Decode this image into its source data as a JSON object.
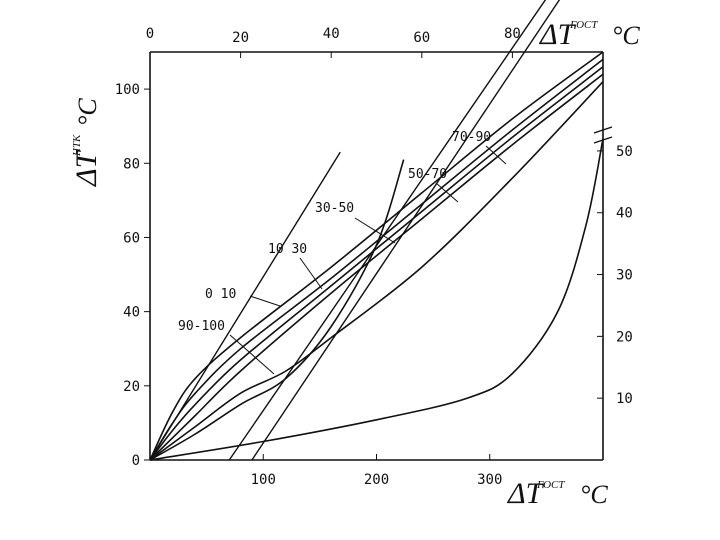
{
  "chart_data": {
    "type": "line",
    "title": "",
    "axes": {
      "bottom": {
        "symbol": "ΔT",
        "superscript": "ГОСТ",
        "suffix": "°C",
        "ticks": [
          "100",
          "200",
          "300"
        ],
        "range": [
          0,
          400
        ]
      },
      "top": {
        "symbol": "ΔT",
        "superscript": "ГОСТ",
        "suffix": "°C",
        "ticks": [
          "0",
          "20",
          "40",
          "60",
          "80"
        ],
        "range": [
          0,
          100
        ]
      },
      "left": {
        "symbol": "ΔT",
        "superscript": "НТК",
        "suffix": "°C",
        "ticks": [
          "0",
          "20",
          "40",
          "60",
          "80",
          "100"
        ],
        "range": [
          0,
          110
        ]
      },
      "right": {
        "ticks": [
          "10",
          "20",
          "30",
          "40",
          "50"
        ],
        "range": [
          0,
          66
        ]
      }
    },
    "grid": false,
    "curve_labels": [
      "90-100",
      "0 10",
      "10 30",
      "30-50",
      "50-70",
      "70-90"
    ],
    "series": [
      {
        "name": "0 10",
        "axes": "top-left",
        "points": [
          [
            0,
            0
          ],
          [
            5,
            13
          ],
          [
            10,
            22
          ],
          [
            20,
            33
          ],
          [
            40,
            52
          ],
          [
            60,
            72
          ],
          [
            80,
            92
          ],
          [
            100,
            110
          ]
        ]
      },
      {
        "name": "10 30",
        "axes": "top-left",
        "points": [
          [
            0,
            0
          ],
          [
            5,
            10
          ],
          [
            10,
            18
          ],
          [
            20,
            30
          ],
          [
            40,
            49
          ],
          [
            60,
            69
          ],
          [
            80,
            89
          ],
          [
            100,
            108
          ]
        ]
      },
      {
        "name": "30-50",
        "axes": "top-left",
        "points": [
          [
            0,
            0
          ],
          [
            5,
            8
          ],
          [
            10,
            15
          ],
          [
            20,
            27
          ],
          [
            40,
            47
          ],
          [
            60,
            67
          ],
          [
            80,
            87
          ],
          [
            100,
            106
          ]
        ]
      },
      {
        "name": "50-70",
        "axes": "top-left",
        "points": [
          [
            0,
            0
          ],
          [
            5,
            6
          ],
          [
            10,
            12
          ],
          [
            20,
            24
          ],
          [
            40,
            45
          ],
          [
            60,
            65
          ],
          [
            80,
            85
          ],
          [
            100,
            104
          ]
        ]
      },
      {
        "name": "70-90",
        "axes": "top-left",
        "points": [
          [
            0,
            0
          ],
          [
            10,
            9
          ],
          [
            20,
            18
          ],
          [
            30,
            24
          ],
          [
            40,
            33
          ],
          [
            60,
            52
          ],
          [
            80,
            76
          ],
          [
            100,
            102
          ]
        ]
      },
      {
        "name": "90-100",
        "axes": "top-left",
        "points": [
          [
            0,
            0
          ],
          [
            10,
            7
          ],
          [
            20,
            15
          ],
          [
            30,
            22
          ],
          [
            40,
            36
          ],
          [
            50,
            58
          ],
          [
            56,
            81
          ]
        ]
      },
      {
        "name": "",
        "axes": "bottom-right",
        "points": [
          [
            0,
            0
          ],
          [
            100,
            3
          ],
          [
            200,
            6.5
          ],
          [
            280,
            10
          ],
          [
            320,
            14
          ],
          [
            360,
            24
          ],
          [
            385,
            38
          ],
          [
            400,
            52
          ]
        ]
      }
    ],
    "straight_lines": [
      {
        "axes": "top-left",
        "from": [
          0,
          0
        ],
        "to": [
          42,
          83
        ]
      },
      {
        "axes": "bottom-right",
        "from": [
          70,
          0
        ],
        "to": [
          400,
          88
        ]
      },
      {
        "axes": "bottom-right",
        "from": [
          90,
          0
        ],
        "to": [
          400,
          85
        ]
      }
    ]
  }
}
